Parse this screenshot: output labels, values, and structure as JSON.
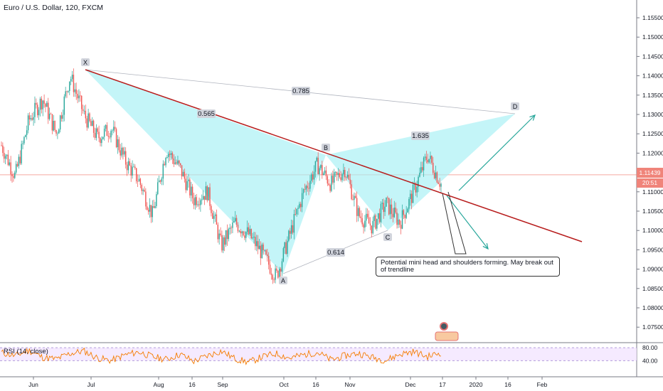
{
  "header": {
    "title": "Euro / U.S. Dollar, 120, FXCM"
  },
  "price_badge": {
    "value": "1.11439",
    "countdown": "20:51"
  },
  "rsi": {
    "label": "RSI (14, close)",
    "levels": [
      "80.00",
      "40.00"
    ]
  },
  "note": "Potential mini head and shoulders forming. May break out of trendline",
  "colors": {
    "up": "#26a69a",
    "down": "#ef5350",
    "pattern_fill": "#a5f0f5",
    "trendline": "#b71c1c",
    "arrow": "#26a69a",
    "rsi_line": "#f57c00",
    "rsi_band": "#f3e5ff"
  },
  "chart_data": {
    "type": "line",
    "y_axis": [
      "1.07500",
      "1.08000",
      "1.08500",
      "1.09000",
      "1.09500",
      "1.10000",
      "1.10500",
      "1.11000",
      "1.11500",
      "1.12000",
      "1.12500",
      "1.13000",
      "1.13500",
      "1.14000",
      "1.14500",
      "1.15000",
      "1.15500"
    ],
    "x_axis": [
      "Jun",
      "Jul",
      "Aug",
      "16",
      "Sep",
      "Oct",
      "16",
      "Nov",
      "Dec",
      "17",
      "2020",
      "16",
      "Feb"
    ],
    "price_series": [
      {
        "date": "Jun",
        "price": 1.122
      },
      {
        "date": "Jun",
        "price": 1.114
      },
      {
        "date": "Jun",
        "price": 1.1285
      },
      {
        "date": "Jun",
        "price": 1.134
      },
      {
        "date": "Jun",
        "price": 1.125
      },
      {
        "date": "Jul",
        "price": 1.14
      },
      {
        "date": "Jul",
        "price": 1.13
      },
      {
        "date": "Jul",
        "price": 1.124
      },
      {
        "date": "Jul",
        "price": 1.1265
      },
      {
        "date": "Jul",
        "price": 1.118
      },
      {
        "date": "Aug",
        "price": 1.113
      },
      {
        "date": "Aug",
        "price": 1.104
      },
      {
        "date": "Aug",
        "price": 1.121
      },
      {
        "date": "Aug",
        "price": 1.116
      },
      {
        "date": "16",
        "price": 1.108
      },
      {
        "date": "16",
        "price": 1.11
      },
      {
        "date": "Sep",
        "price": 1.096
      },
      {
        "date": "Sep",
        "price": 1.102
      },
      {
        "date": "Sep",
        "price": 1.099
      },
      {
        "date": "Sep",
        "price": 1.094
      },
      {
        "date": "Oct",
        "price": 1.088
      },
      {
        "date": "Oct",
        "price": 1.099
      },
      {
        "date": "Oct",
        "price": 1.11
      },
      {
        "date": "16",
        "price": 1.117
      },
      {
        "date": "16",
        "price": 1.112
      },
      {
        "date": "Nov",
        "price": 1.116
      },
      {
        "date": "Nov",
        "price": 1.104
      },
      {
        "date": "Nov",
        "price": 1.101
      },
      {
        "date": "Nov",
        "price": 1.107
      },
      {
        "date": "Dec",
        "price": 1.102
      },
      {
        "date": "Dec",
        "price": 1.11
      },
      {
        "date": "Dec",
        "price": 1.1195
      },
      {
        "date": "17",
        "price": 1.112
      }
    ],
    "current_price": 1.11439,
    "pattern_points": [
      {
        "label": "X",
        "price": 1.141
      },
      {
        "label": "A",
        "price": 1.088
      },
      {
        "label": "B",
        "price": 1.1185
      },
      {
        "label": "C",
        "price": 1.099
      },
      {
        "label": "D",
        "price": 1.13
      }
    ],
    "ratios": [
      "0.785",
      "0.565",
      "1.635",
      "0.614"
    ],
    "rsi_values": [
      65,
      55,
      72,
      50,
      45,
      62,
      70,
      48,
      40,
      58,
      67,
      52,
      44,
      60,
      38,
      55,
      70,
      46,
      35,
      52,
      62,
      48,
      58,
      66,
      42,
      55,
      63,
      50,
      41,
      60,
      68,
      52,
      65
    ]
  }
}
